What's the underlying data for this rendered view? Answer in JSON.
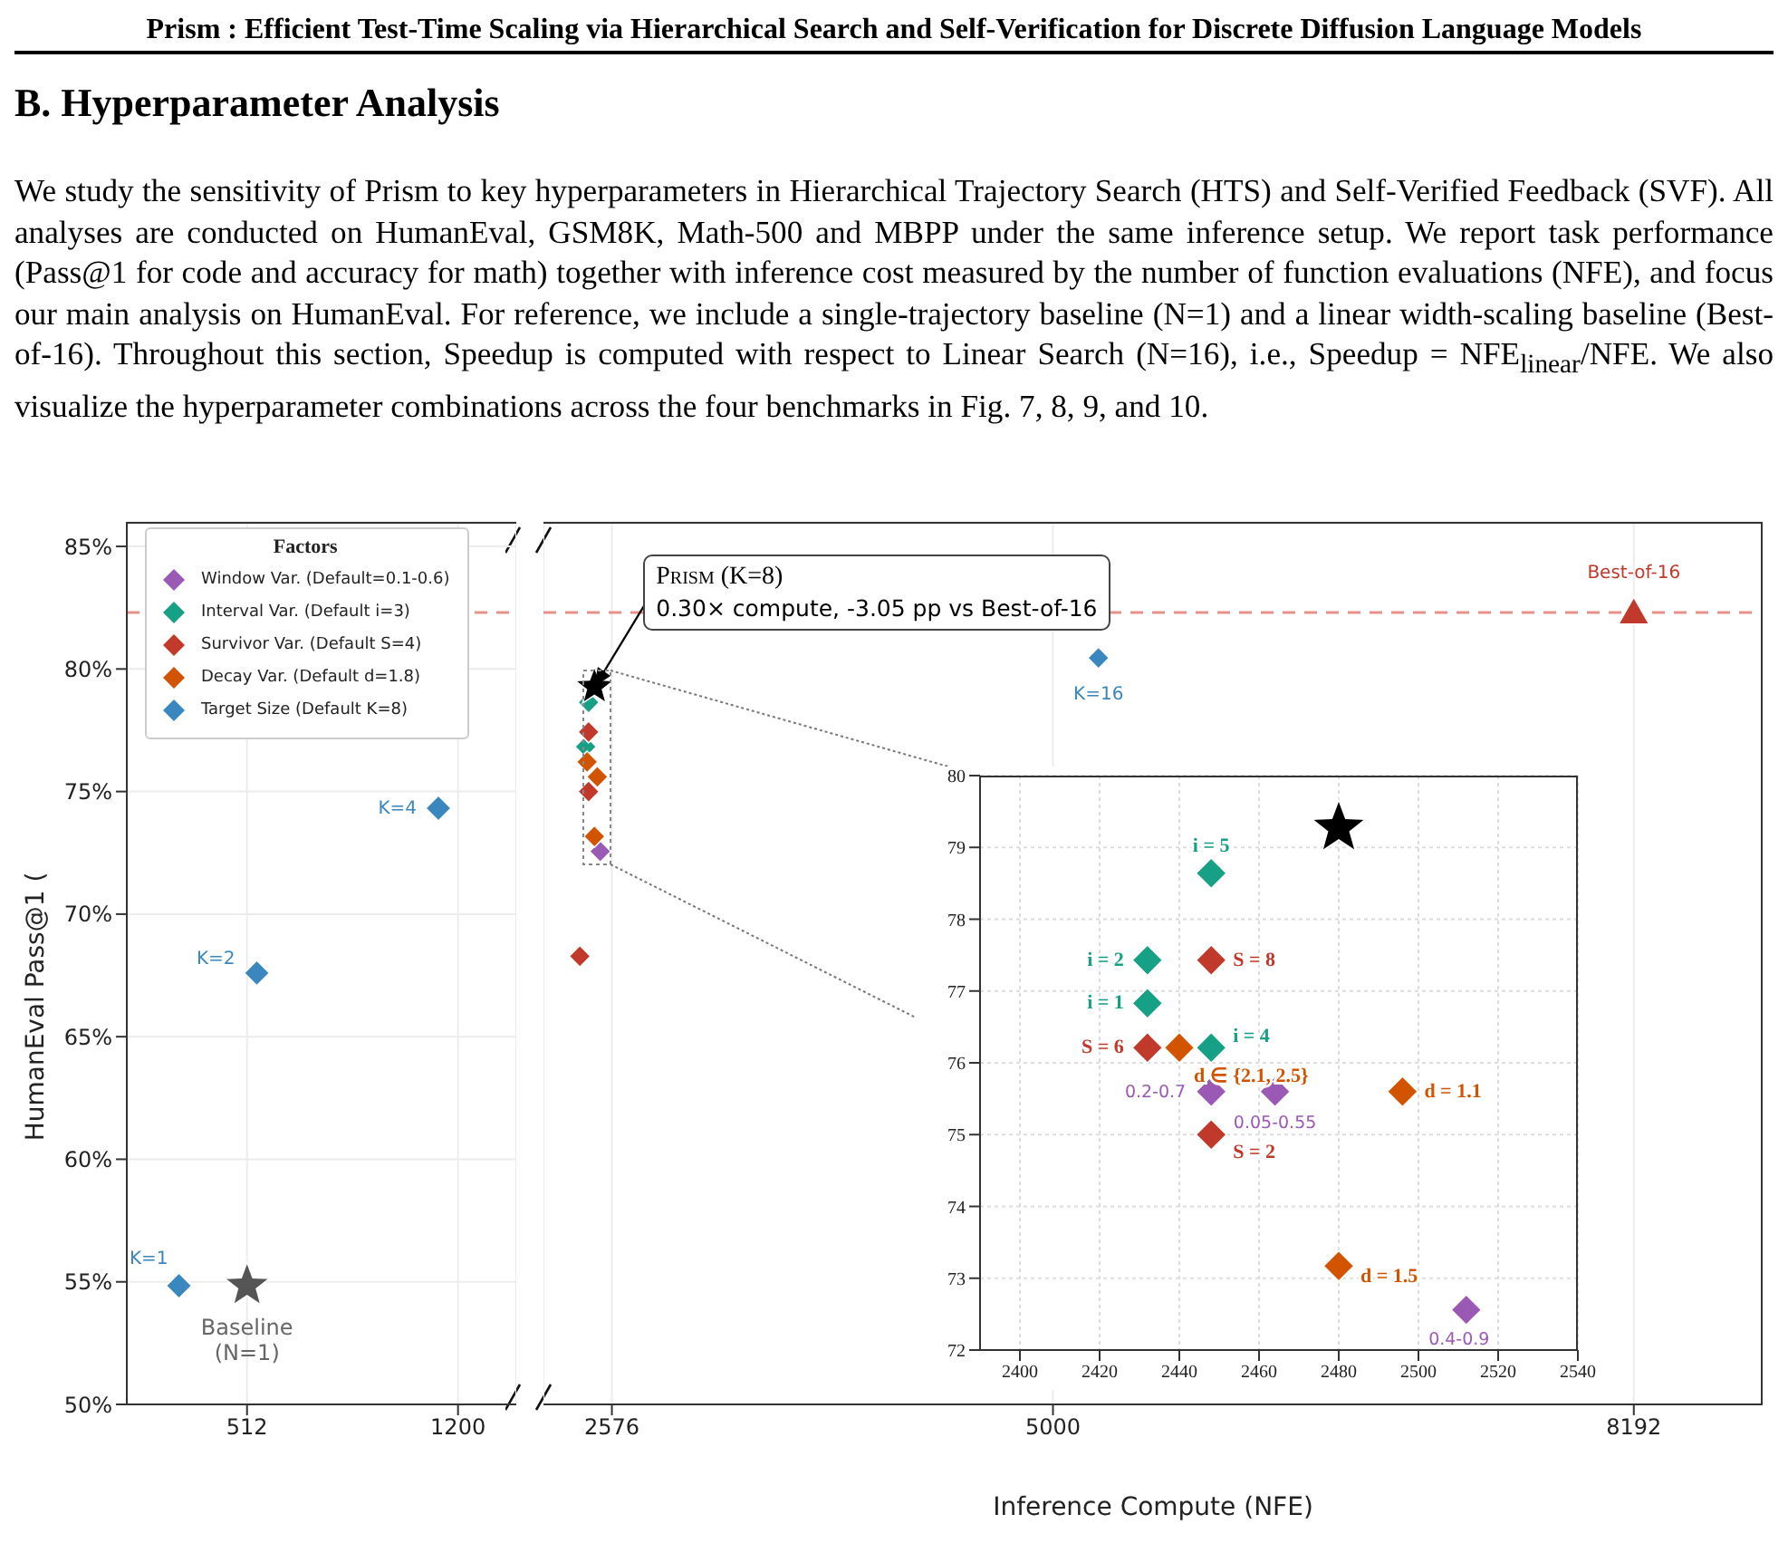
{
  "chart_data": [
    {
      "type": "scatter",
      "title": "B. Hyperparameter Analysis",
      "ylabel": "HumanEval Pass@1 (",
      "xlim": [
        120,
        1390
      ],
      "xticks": [
        512,
        1200
      ],
      "ylim": [
        50,
        86
      ],
      "yticks": [
        {
          "value": 50,
          "label": "50%"
        },
        {
          "value": 55,
          "label": "55%"
        },
        {
          "value": 60,
          "label": "60%"
        },
        {
          "value": 65,
          "label": "65%"
        },
        {
          "value": 70,
          "label": "70%"
        },
        {
          "value": 75,
          "label": "75%"
        },
        {
          "value": 80,
          "label": "80%"
        },
        {
          "value": 85,
          "label": "85%"
        }
      ],
      "grid": true,
      "ref_lines": [
        {
          "axis": "y",
          "value": 82.3,
          "color": "#e8918a",
          "line_style": "dashed"
        }
      ],
      "annotations": [
        "Prism : Efficient Test-Time Scaling via Hierarchical Search and Self-Verification for Discrete Diffusion Language Models",
        "We study the sensitivity of Prism to key hyperparameters in Hierarchical Trajectory Search (HTS) and Self-Verified Feedback (SVF). All analyses are conducted on HumanEval, GSM8K, Math-500 and MBPP under the same inference setup. We report task performance (Pass@1 for code and accuracy for math) together with inference cost measured by the number of function evaluations (NFE), and focus our main analysis on HumanEval. For reference, we include a single-trajectory baseline (N=1) and a linear width-scaling baseline (Best-of-16). Throughout this section, Speedup is computed with respect to Linear Search (N=16), i.e., Speedup = NFE$_{linear}$/NFE. We also visualize the hyperparameter combinations across the four benchmarks in Fig. 7, 8, 9, and 10.",
        {
          "text": "K=1",
          "x": 290,
          "y": 54.84
        },
        {
          "text": "K=2",
          "x": 544,
          "y": 67.6
        },
        {
          "text": "K=4",
          "x": 1136,
          "y": 74.32
        },
        {
          "text": "Baseline\n(N=1)",
          "x": 512,
          "y": 54.84
        }
      ],
      "series": [
        {
          "color": "#3a87c0",
          "marker": "diamond",
          "x": [
            290,
            544,
            1136
          ],
          "values": [
            54.84,
            67.6,
            74.32
          ]
        },
        {
          "color": "#555555",
          "marker": "star",
          "x": [
            512
          ],
          "values": [
            54.84
          ]
        }
      ]
    },
    {
      "type": "scatter",
      "xlabel": "Inference Compute (NFE)",
      "xlim": [
        2200,
        8900
      ],
      "xticks": [
        2576,
        5000,
        8192
      ],
      "ylim": [
        50,
        86
      ],
      "yticks": [
        50,
        55,
        60,
        65,
        70,
        75,
        80,
        85
      ],
      "tick_labels": "x",
      "grid": true,
      "legend": "top left",
      "legend_title": "Factors",
      "ref_lines": [
        {
          "axis": "y",
          "value": 82.3,
          "color": "#e8918a",
          "line_style": "dashed"
        }
      ],
      "annotations": [
        {
          "text": "Prism (K=8)\n0.30× compute, -3.05 pp vs Best-of-16",
          "x": 2480,
          "y": 79.27
        },
        {
          "text": "K=16",
          "x": 5250,
          "y": 80.45
        },
        {
          "text": "Best-of-16",
          "x": 8192,
          "y": 82.3
        }
      ],
      "series": [
        {
          "name": "Window Var. (Default=0.1-0.6)",
          "color": "#9b59b6",
          "marker": "diamond",
          "x": [
            2512
          ],
          "values": [
            72.56
          ]
        },
        {
          "name": "Interval Var. (Default i=3)",
          "color": "#16a085",
          "marker": "diamond",
          "x": [
            2448,
            2432
          ],
          "values": [
            78.64,
            76.83
          ]
        },
        {
          "name": "Survivor Var. (Default S=4)",
          "color": "#c0392b",
          "marker": "diamond",
          "x": [
            2448,
            2448,
            2400
          ],
          "values": [
            77.43,
            75.0,
            68.28
          ]
        },
        {
          "name": "Decay Var. (Default d=1.8)",
          "color": "#d35400",
          "marker": "diamond",
          "x": [
            2440,
            2496,
            2480
          ],
          "values": [
            76.21,
            75.6,
            73.17
          ]
        },
        {
          "name": "Target Size (Default K=8)",
          "color": "#3a87c0",
          "marker": "diamond",
          "x": [
            5250
          ],
          "values": [
            80.45
          ]
        },
        {
          "color": "#000000",
          "marker": "star",
          "x": [
            2480
          ],
          "values": [
            79.27
          ]
        },
        {
          "color": "#c0392b",
          "marker": "triangle",
          "x": [
            8192
          ],
          "values": [
            82.3
          ]
        }
      ]
    },
    {
      "type": "scatter",
      "xlim": [
        2390,
        2540
      ],
      "xticks": [
        2400,
        2420,
        2440,
        2460,
        2480,
        2500,
        2520,
        2540
      ],
      "ylim": [
        72,
        80
      ],
      "yticks": [
        72,
        73,
        74,
        75,
        76,
        77,
        78,
        79,
        80
      ],
      "grid": true,
      "annotations": [
        {
          "text": "0.2-0.7",
          "x": 2448,
          "y": 75.6
        },
        {
          "text": "0.05-0.55",
          "x": 2464,
          "y": 75.6
        },
        {
          "text": "0.4-0.9",
          "x": 2512,
          "y": 72.56
        },
        {
          "text": "i = 5",
          "x": 2448,
          "y": 78.64
        },
        {
          "text": "i = 2",
          "x": 2432,
          "y": 77.43
        },
        {
          "text": "i = 1",
          "x": 2432,
          "y": 76.83
        },
        {
          "text": "i = 4",
          "x": 2448,
          "y": 76.21
        },
        {
          "text": "S = 8",
          "x": 2448,
          "y": 77.43
        },
        {
          "text": "S = 6",
          "x": 2432,
          "y": 76.21
        },
        {
          "text": "S = 2",
          "x": 2448,
          "y": 75.0
        },
        {
          "text": "d ∈ {2.1, 2.5}",
          "x": 2440,
          "y": 76.21
        },
        {
          "text": "d = 1.1",
          "x": 2496,
          "y": 75.6
        },
        {
          "text": "d = 1.5",
          "x": 2480,
          "y": 73.17
        }
      ],
      "series": [
        {
          "color": "#9b59b6",
          "marker": "diamond",
          "x": [
            2448,
            2464,
            2512
          ],
          "values": [
            75.6,
            75.6,
            72.56
          ]
        },
        {
          "color": "#16a085",
          "marker": "diamond",
          "x": [
            2448,
            2432,
            2432,
            2448
          ],
          "values": [
            78.64,
            77.43,
            76.83,
            76.21
          ]
        },
        {
          "color": "#c0392b",
          "marker": "diamond",
          "x": [
            2448,
            2432,
            2448
          ],
          "values": [
            77.43,
            76.21,
            75.0
          ]
        },
        {
          "color": "#d35400",
          "marker": "diamond",
          "x": [
            2440,
            2496,
            2480
          ],
          "values": [
            76.21,
            75.6,
            73.17
          ]
        },
        {
          "color": "#000000",
          "marker": "star",
          "x": [
            2480
          ],
          "values": [
            79.27
          ]
        }
      ]
    }
  ]
}
